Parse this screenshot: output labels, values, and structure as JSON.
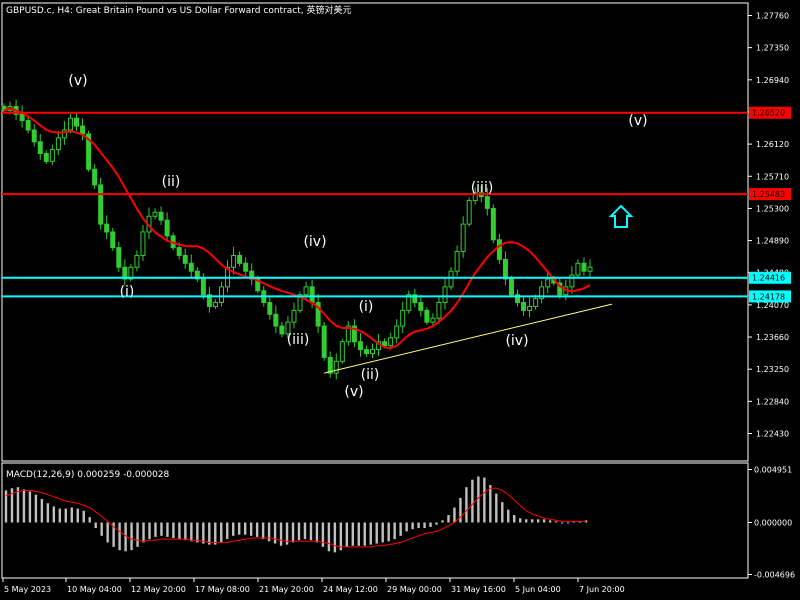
{
  "header": {
    "symbol": "GBPUSD.c",
    "timeframe": "H4",
    "description": "Great Britain Pound vs US Dollar Forward contract",
    "broker_tag": "英镑对美元"
  },
  "macd_label": "MACD(12,26,9)",
  "macd_value_1": "0.000259",
  "macd_value_2": "-0.000028",
  "price_axis_labels": [
    "1.27760",
    "1.27350",
    "1.26940",
    "1.26530",
    "1.26120",
    "1.25710",
    "1.25300",
    "1.24890",
    "1.24480",
    "1.24070",
    "1.23660",
    "1.23250",
    "1.22840",
    "1.22430"
  ],
  "macd_axis_labels": [
    "0.004951",
    "0.000000",
    "-0.004696"
  ],
  "time_axis_labels": [
    "5 May 2023",
    "10 May 04:00",
    "12 May 20:00",
    "17 May 08:00",
    "21 May 20:00",
    "24 May 12:00",
    "29 May 00:00",
    "31 May 16:00",
    "5 Jun 04:00",
    "7 Jun 20:00"
  ],
  "level_tags": [
    "1.26520",
    "1.25483",
    "1.24416",
    "1.24178"
  ],
  "wave_labels": [
    "(v)",
    "(ii)",
    "(i)",
    "(iv)",
    "(iii)",
    "(i)",
    "(ii)",
    "(v)",
    "(iii)",
    "(iv)",
    "(v)"
  ],
  "colors": {
    "background": "#000000",
    "bull_candle": "#32cd32",
    "bear_candle": "#32cd32",
    "resistance_line": "#ff0000",
    "support_line": "#00ffff",
    "ma_line": "#ff0000",
    "trend_line": "#ffff80",
    "arrow": "#00ffff",
    "macd_hist": "#c0c0c0",
    "macd_signal": "#ff0000",
    "grid_text": "#ffffff"
  },
  "chart_data": [
    {
      "type": "candlestick",
      "series": [
        {
          "name": "GBPUSD.c H4 close (approx.)",
          "values": [
            1.2655,
            1.266,
            1.265,
            1.2642,
            1.263,
            1.2615,
            1.26,
            1.259,
            1.2605,
            1.262,
            1.263,
            1.2645,
            1.2635,
            1.2625,
            1.258,
            1.256,
            1.251,
            1.25,
            1.248,
            1.2455,
            1.244,
            1.2455,
            1.247,
            1.25,
            1.252,
            1.2525,
            1.2515,
            1.2495,
            1.248,
            1.247,
            1.246,
            1.245,
            1.244,
            1.242,
            1.2405,
            1.241,
            1.243,
            1.2455,
            1.247,
            1.246,
            1.245,
            1.244,
            1.2425,
            1.241,
            1.2395,
            1.238,
            1.237,
            1.2385,
            1.24,
            1.242,
            1.243,
            1.241,
            1.238,
            1.234,
            1.232,
            1.2335,
            1.236,
            1.238,
            1.236,
            1.235,
            1.2345,
            1.235,
            1.236,
            1.2355,
            1.2365,
            1.238,
            1.24,
            1.242,
            1.241,
            1.24,
            1.2385,
            1.239,
            1.241,
            1.243,
            1.245,
            1.2475,
            1.251,
            1.254,
            1.255,
            1.2545,
            1.253,
            1.249,
            1.2465,
            1.244,
            1.242,
            1.241,
            1.24,
            1.2405,
            1.2415,
            1.243,
            1.244,
            1.2435,
            1.242,
            1.243,
            1.2445,
            1.246,
            1.245,
            1.2455
          ]
        }
      ],
      "levels": {
        "resistance": [
          1.2652,
          1.25483
        ],
        "support": [
          1.24416,
          1.24178
        ]
      },
      "ylim": [
        1.2225,
        1.2795
      ]
    },
    {
      "type": "bar",
      "title": "MACD(12,26,9)",
      "series": [
        {
          "name": "MACD",
          "values": [
            0.003,
            0.0032,
            0.0033,
            0.0031,
            0.0029,
            0.0026,
            0.0022,
            0.0018,
            0.0015,
            0.0013,
            0.0013,
            0.0014,
            0.0013,
            0.0011,
            0.0005,
            -0.0005,
            -0.0012,
            -0.0018,
            -0.0022,
            -0.0025,
            -0.0026,
            -0.0025,
            -0.0022,
            -0.0018,
            -0.0015,
            -0.0013,
            -0.0012,
            -0.0013,
            -0.0014,
            -0.0015,
            -0.0016,
            -0.0017,
            -0.0018,
            -0.0019,
            -0.002,
            -0.002,
            -0.0018,
            -0.0015,
            -0.0012,
            -0.0011,
            -0.0011,
            -0.0012,
            -0.0013,
            -0.0015,
            -0.0017,
            -0.0019,
            -0.0021,
            -0.002,
            -0.0018,
            -0.0016,
            -0.0015,
            -0.0016,
            -0.0018,
            -0.0022,
            -0.0026,
            -0.0027,
            -0.0025,
            -0.0022,
            -0.0021,
            -0.0021,
            -0.0021,
            -0.002,
            -0.0019,
            -0.0018,
            -0.0017,
            -0.0015,
            -0.0012,
            -0.0008,
            -0.0006,
            -0.0005,
            -0.0005,
            -0.0004,
            -0.0002,
            0.0002,
            0.0007,
            0.0014,
            0.0023,
            0.0033,
            0.004,
            0.0043,
            0.0042,
            0.0035,
            0.0027,
            0.0019,
            0.0012,
            0.0007,
            0.0004,
            0.0003,
            0.0003,
            0.0003,
            0.0003,
            0.0002,
            0.0001,
            0.0,
            0.0,
            0.0001,
            0.0001,
            0.0002
          ]
        },
        {
          "name": "Signal",
          "values": [
            0.0025,
            0.0027,
            0.0029,
            0.003,
            0.003,
            0.0029,
            0.0028,
            0.0026,
            0.0024,
            0.0022,
            0.002,
            0.0019,
            0.0018,
            0.0016,
            0.0014,
            0.001,
            0.0006,
            0.0001,
            -0.0004,
            -0.0008,
            -0.0012,
            -0.0015,
            -0.0016,
            -0.0017,
            -0.0016,
            -0.0016,
            -0.0015,
            -0.0015,
            -0.0015,
            -0.0015,
            -0.0015,
            -0.0016,
            -0.0016,
            -0.0017,
            -0.0018,
            -0.0018,
            -0.0018,
            -0.0018,
            -0.0017,
            -0.0016,
            -0.0015,
            -0.0014,
            -0.0014,
            -0.0014,
            -0.0014,
            -0.0015,
            -0.0016,
            -0.0017,
            -0.0017,
            -0.0017,
            -0.0017,
            -0.0017,
            -0.0017,
            -0.0018,
            -0.0019,
            -0.0021,
            -0.0022,
            -0.0022,
            -0.0022,
            -0.0022,
            -0.0022,
            -0.0022,
            -0.0021,
            -0.0021,
            -0.002,
            -0.0019,
            -0.0018,
            -0.0016,
            -0.0014,
            -0.0012,
            -0.001,
            -0.0009,
            -0.0008,
            -0.0006,
            -0.0003,
            0.0,
            0.0005,
            0.0011,
            0.0017,
            0.0023,
            0.0028,
            0.0032,
            0.0032,
            0.003,
            0.0026,
            0.0021,
            0.0016,
            0.0011,
            0.0008,
            0.0006,
            0.0004,
            0.0003,
            0.0002,
            0.0001,
            0.0001,
            0.0001,
            0.0001,
            0.0001
          ]
        }
      ],
      "ylim": [
        -0.004696,
        0.004951
      ]
    }
  ]
}
